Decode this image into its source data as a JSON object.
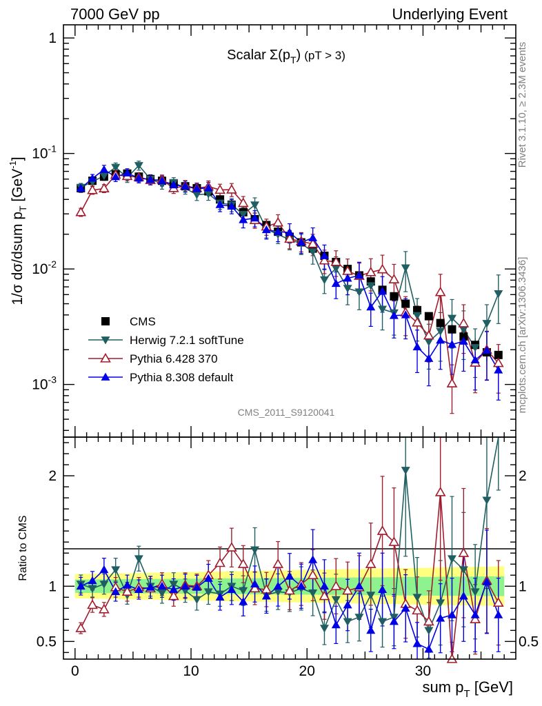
{
  "header": {
    "left": "7000 GeV pp",
    "right": "Underlying Event",
    "plot_title_main": "Scalar",
    "plot_title_sigma": "Σ(p",
    "plot_title_sub": "T",
    "plot_title_close": ")",
    "plot_title_cut": "(pT >  3)",
    "watermark_center": "CMS_2011_S9120041",
    "side_text_top": "Rivet 3.1.10, ≥ 2.3M events",
    "side_text_bottom": "mcplots.cern.ch [arXiv:1306.3436]"
  },
  "chart_data": [
    {
      "type": "scatter",
      "yscale": "log",
      "ylabel": "1/σ dσ/dsum p_T [GeV⁻¹]",
      "ylabel_parts": {
        "main": "1/σ dσ/dsum p",
        "sub": "T",
        "bracket": " [GeV",
        "sup": "-1",
        "close": "]"
      },
      "xlim": [
        -1,
        38
      ],
      "ylim": [
        0.00035,
        1.3
      ],
      "yticks": [
        {
          "value": 1,
          "label": "1"
        },
        {
          "value": 0.1,
          "label": "10",
          "exp": "-1"
        },
        {
          "value": 0.01,
          "label": "10",
          "exp": "-2"
        },
        {
          "value": 0.001,
          "label": "10",
          "exp": "-3"
        }
      ],
      "legend_placement": "lower-left",
      "x": [
        0.5,
        1.5,
        2.5,
        3.5,
        4.5,
        5.5,
        6.5,
        7.5,
        8.5,
        9.5,
        10.5,
        11.5,
        12.5,
        13.5,
        14.5,
        15.5,
        16.5,
        17.5,
        18.5,
        19.5,
        20.5,
        21.5,
        22.5,
        23.5,
        24.5,
        25.5,
        26.5,
        27.5,
        28.5,
        29.5,
        30.5,
        31.5,
        32.5,
        33.5,
        34.5,
        35.5,
        36.5
      ],
      "series": [
        {
          "name": "CMS",
          "color": "#000000",
          "marker": "square",
          "values": [
            0.05,
            0.058,
            0.063,
            0.066,
            0.067,
            0.063,
            0.06,
            0.058,
            0.055,
            0.052,
            0.05,
            0.047,
            0.04,
            0.036,
            0.031,
            0.027,
            0.024,
            0.021,
            0.019,
            0.017,
            0.015,
            0.013,
            0.0115,
            0.01,
            0.0088,
            0.0078,
            0.0066,
            0.0058,
            0.005,
            0.0044,
            0.0039,
            0.0034,
            0.003,
            0.0026,
            0.0022,
            0.0019,
            0.0018
          ],
          "errors": [
            0.004,
            0.004,
            0.004,
            0.004,
            0.004,
            0.004,
            0.003,
            0.003,
            0.003,
            0.003,
            0.003,
            0.003,
            0.002,
            0.002,
            0.002,
            0.0015,
            0.0013,
            0.0011,
            0.001,
            0.0009,
            0.0008,
            0.0007,
            0.0007,
            0.0006,
            0.0006,
            0.0005,
            0.0005,
            0.0004,
            0.0004,
            0.0004,
            0.0003,
            0.0003,
            0.0003,
            0.0003,
            0.0003,
            0.0003,
            0.0003
          ]
        },
        {
          "name": "Herwig 7.2.1 softTune",
          "color": "#1f5f62",
          "marker": "triangle-down",
          "ratio": [
            1.02,
            0.98,
            1.02,
            1.15,
            0.92,
            1.25,
            1.0,
            0.94,
            1.02,
            0.96,
            0.88,
            0.95,
            0.93,
            1.0,
            0.96,
            1.33,
            0.92,
            0.95,
            0.94,
            0.98,
            0.94,
            0.62,
            0.88,
            0.68,
            0.72,
            0.92,
            0.68,
            0.72,
            2.05,
            0.9,
            0.6,
            0.85,
            1.25,
            1.15,
            0.95,
            1.78,
            3.4
          ],
          "rel_err": [
            0.08,
            0.08,
            0.09,
            0.09,
            0.09,
            0.09,
            0.09,
            0.1,
            0.1,
            0.11,
            0.11,
            0.12,
            0.12,
            0.13,
            0.14,
            0.15,
            0.16,
            0.17,
            0.18,
            0.2,
            0.22,
            0.24,
            0.26,
            0.28,
            0.3,
            0.32,
            0.34,
            0.36,
            0.38,
            0.4,
            0.42,
            0.45,
            0.45,
            0.45,
            0.45,
            0.45,
            0.45
          ]
        },
        {
          "name": "Pythia 6.428 370",
          "color": "#a01c2c",
          "marker": "triangle-up-open",
          "ratio": [
            0.62,
            0.83,
            0.79,
            0.99,
            0.95,
            0.99,
            0.98,
            1.02,
            0.91,
            1.01,
            1.0,
            1.1,
            1.21,
            1.35,
            1.2,
            0.98,
            0.97,
            1.2,
            0.96,
            1.02,
            1.1,
            0.91,
            1.0,
            0.96,
            0.99,
            1.2,
            1.5,
            1.4,
            0.84,
            0.78,
            0.68,
            1.85,
            0.34,
            1.3,
            0.7,
            1.05,
            0.85
          ],
          "rel_err": [
            0.08,
            0.08,
            0.08,
            0.09,
            0.09,
            0.09,
            0.09,
            0.1,
            0.1,
            0.11,
            0.11,
            0.12,
            0.12,
            0.13,
            0.14,
            0.15,
            0.16,
            0.17,
            0.18,
            0.19,
            0.21,
            0.23,
            0.25,
            0.27,
            0.29,
            0.31,
            0.33,
            0.35,
            0.37,
            0.39,
            0.41,
            0.43,
            0.45,
            0.45,
            0.45,
            0.45,
            0.45
          ]
        },
        {
          "name": "Pythia 8.308 default",
          "color": "#0000e6",
          "marker": "triangle-up",
          "ratio": [
            1.0,
            1.05,
            1.15,
            0.95,
            1.01,
            0.97,
            0.99,
            1.0,
            0.97,
            1.0,
            0.99,
            1.07,
            0.9,
            0.97,
            0.86,
            1.02,
            0.91,
            1.0,
            1.09,
            1.0,
            1.24,
            1.0,
            0.65,
            0.83,
            1.0,
            0.6,
            0.97,
            0.68,
            0.8,
            0.48,
            0.43,
            0.71,
            0.74,
            0.91,
            0.74,
            1.04,
            0.74
          ],
          "rel_err": [
            0.08,
            0.08,
            0.09,
            0.09,
            0.09,
            0.09,
            0.1,
            0.1,
            0.1,
            0.11,
            0.11,
            0.12,
            0.13,
            0.14,
            0.15,
            0.16,
            0.17,
            0.18,
            0.19,
            0.2,
            0.22,
            0.24,
            0.26,
            0.28,
            0.3,
            0.32,
            0.34,
            0.36,
            0.38,
            0.4,
            0.42,
            0.44,
            0.45,
            0.45,
            0.45,
            0.45,
            0.45
          ]
        }
      ]
    },
    {
      "type": "scatter",
      "ylabel": "Ratio to CMS",
      "xlabel_parts": {
        "main": "sum p",
        "sub": "T",
        "unit": " [GeV]"
      },
      "xlim": [
        -1,
        38
      ],
      "ylim": [
        0.34,
        2.35
      ],
      "xticks": [
        0,
        10,
        20,
        30
      ],
      "yticks": [
        0.5,
        1,
        2
      ],
      "band_inner_color": "#8ef28e",
      "band_outer_color": "#ffff80",
      "band_inner_rel": [
        0.06,
        0.09
      ],
      "band_outer_rel": [
        0.11,
        0.18
      ]
    }
  ]
}
